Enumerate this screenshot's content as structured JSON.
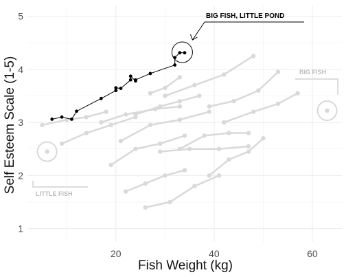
{
  "chart_data": {
    "type": "line",
    "title": "",
    "xlabel": "Fish Weight (kg)",
    "ylabel": "Self Esteem Scale (1-5)",
    "xlim": [
      2,
      66
    ],
    "ylim": [
      0.75,
      5.2
    ],
    "xticks": [
      20,
      40,
      60
    ],
    "yticks": [
      1,
      2,
      3,
      4,
      5
    ],
    "grid": true,
    "colors": {
      "highlight": "#000000",
      "background_series": "#d9d9d9",
      "grid": "#ebebeb"
    },
    "highlighted_series": {
      "x": [
        7,
        9,
        11,
        12,
        17,
        20,
        20,
        21,
        23,
        23,
        24,
        24,
        27,
        32,
        32,
        33,
        34
      ],
      "y": [
        3.06,
        3.1,
        3.06,
        3.21,
        3.45,
        3.6,
        3.65,
        3.64,
        3.8,
        3.87,
        3.78,
        3.8,
        3.92,
        4.08,
        4.22,
        4.31,
        4.31
      ]
    },
    "background_series": [
      {
        "x": [
          5,
          10,
          14,
          18
        ],
        "y": [
          2.95,
          3.05,
          3.1,
          3.2
        ]
      },
      {
        "x": [
          9,
          14,
          19,
          24
        ],
        "y": [
          2.6,
          2.8,
          2.95,
          3.1
        ]
      },
      {
        "x": [
          19,
          24,
          29,
          34
        ],
        "y": [
          2.2,
          2.5,
          2.6,
          2.75
        ]
      },
      {
        "x": [
          22,
          26,
          30,
          34
        ],
        "y": [
          1.7,
          1.85,
          2.0,
          2.1
        ]
      },
      {
        "x": [
          26,
          31,
          36,
          41
        ],
        "y": [
          1.4,
          1.5,
          1.8,
          2.0
        ]
      },
      {
        "x": [
          24,
          29,
          33,
          37
        ],
        "y": [
          3.15,
          3.3,
          3.4,
          3.5
        ]
      },
      {
        "x": [
          29,
          35,
          41,
          47
        ],
        "y": [
          2.45,
          2.5,
          2.5,
          2.55
        ]
      },
      {
        "x": [
          30,
          36,
          42,
          48
        ],
        "y": [
          3.5,
          3.7,
          3.9,
          4.25
        ]
      },
      {
        "x": [
          33,
          38,
          43,
          47
        ],
        "y": [
          2.5,
          2.75,
          2.8,
          2.8
        ]
      },
      {
        "x": [
          39,
          44,
          49,
          53
        ],
        "y": [
          3.3,
          3.4,
          3.6,
          3.95
        ]
      },
      {
        "x": [
          39,
          43,
          47,
          50
        ],
        "y": [
          2.0,
          2.3,
          2.45,
          2.7
        ]
      },
      {
        "x": [
          17,
          22,
          28,
          33
        ],
        "y": [
          3.0,
          3.15,
          3.25,
          3.3
        ]
      },
      {
        "x": [
          21,
          27,
          33,
          39
        ],
        "y": [
          2.65,
          2.95,
          3.05,
          3.2
        ]
      },
      {
        "x": [
          42,
          48,
          53,
          57
        ],
        "y": [
          3.0,
          3.2,
          3.35,
          3.55
        ]
      },
      {
        "x": [
          27,
          30,
          33
        ],
        "y": [
          3.55,
          3.65,
          3.85
        ]
      }
    ],
    "background_highlights": [
      {
        "x": 6,
        "y": 2.45
      },
      {
        "x": 63,
        "y": 3.22
      }
    ],
    "annotation": {
      "text": "BIG FISH, LITTLE POND",
      "point": {
        "x": 33.5,
        "y": 4.32
      }
    }
  }
}
